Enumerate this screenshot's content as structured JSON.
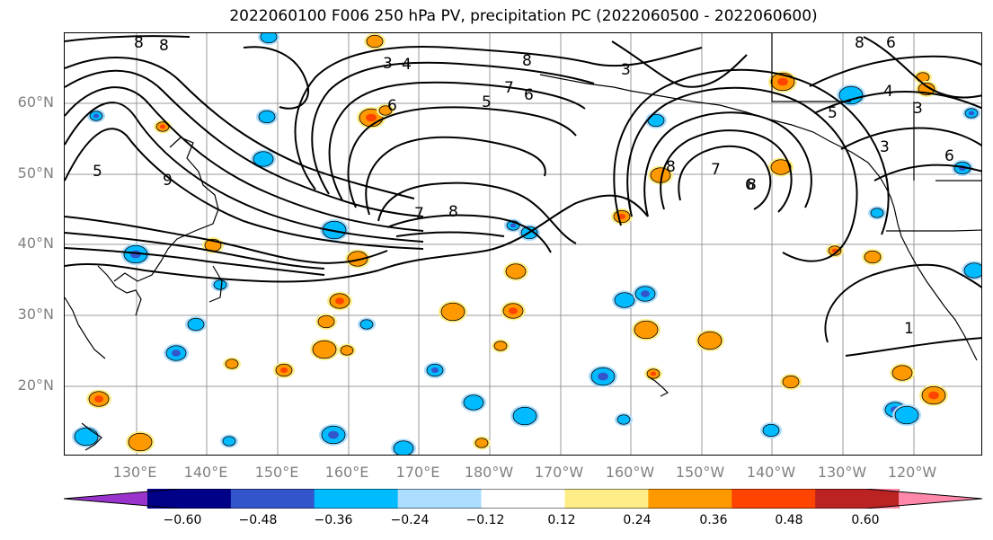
{
  "title": "2022060100 F006 250 hPa PV, precipitation PC (2022060500 - 2022060600)",
  "lat_labels": [
    "60°N",
    "50°N",
    "40°N",
    "30°N",
    "20°N"
  ],
  "lon_labels": [
    "130°E",
    "140°E",
    "150°E",
    "160°E",
    "170°E",
    "180°W",
    "170°W",
    "160°W",
    "150°W",
    "140°W",
    "130°W",
    "120°W"
  ],
  "colorbar": {
    "colors": [
      "#9933cc",
      "#000088",
      "#3355cc",
      "#00bbff",
      "#aaddff",
      "#ffffff",
      "#ffee88",
      "#ff9900",
      "#ff4400",
      "#bb2222",
      "#ff88aa"
    ],
    "tick_labels": [
      "−0.60",
      "−0.48",
      "−0.36",
      "−0.24",
      "−0.12",
      "0.12",
      "0.24",
      "0.36",
      "0.48",
      "0.60"
    ],
    "extend": "both"
  },
  "contour_labels": [
    "8",
    "8",
    "5",
    "9",
    "8",
    "7",
    "3",
    "4",
    "6",
    "8",
    "5",
    "7",
    "6",
    "8",
    "8",
    "7",
    "6",
    "3",
    "8",
    "6",
    "5",
    "3",
    "3",
    "6",
    "4",
    "1"
  ],
  "positive_cells": [
    [
      180,
      140
    ],
    [
      236,
      272
    ],
    [
      397,
      287
    ],
    [
      412,
      130
    ],
    [
      428,
      122
    ],
    [
      416,
      45
    ],
    [
      570,
      345
    ],
    [
      503,
      346
    ],
    [
      556,
      384
    ],
    [
      691,
      240
    ],
    [
      734,
      194
    ],
    [
      789,
      378
    ],
    [
      928,
      278
    ],
    [
      970,
      285
    ],
    [
      1003,
      414
    ],
    [
      1038,
      439
    ],
    [
      257,
      404
    ],
    [
      362,
      357
    ],
    [
      377,
      334
    ],
    [
      360,
      388
    ],
    [
      385,
      389
    ],
    [
      315,
      411
    ],
    [
      573,
      301
    ],
    [
      718,
      366
    ],
    [
      726,
      415
    ],
    [
      879,
      424
    ],
    [
      868,
      185
    ],
    [
      870,
      90
    ],
    [
      1026,
      85
    ],
    [
      1030,
      98
    ],
    [
      109,
      443
    ],
    [
      155,
      491
    ],
    [
      535,
      492
    ]
  ],
  "negative_cells": [
    [
      106,
      128
    ],
    [
      296,
      129
    ],
    [
      292,
      176
    ],
    [
      150,
      282
    ],
    [
      244,
      316
    ],
    [
      217,
      360
    ],
    [
      195,
      392
    ],
    [
      371,
      255
    ],
    [
      407,
      360
    ],
    [
      483,
      411
    ],
    [
      526,
      447
    ],
    [
      583,
      462
    ],
    [
      570,
      250
    ],
    [
      588,
      258
    ],
    [
      694,
      333
    ],
    [
      670,
      418
    ],
    [
      693,
      466
    ],
    [
      729,
      133
    ],
    [
      995,
      455
    ],
    [
      1008,
      461
    ],
    [
      975,
      236
    ],
    [
      1070,
      186
    ],
    [
      1083,
      300
    ],
    [
      946,
      105
    ],
    [
      1080,
      125
    ],
    [
      298,
      40
    ],
    [
      448,
      498
    ],
    [
      370,
      483
    ],
    [
      254,
      490
    ],
    [
      857,
      478
    ],
    [
      717,
      326
    ],
    [
      95,
      485
    ]
  ]
}
